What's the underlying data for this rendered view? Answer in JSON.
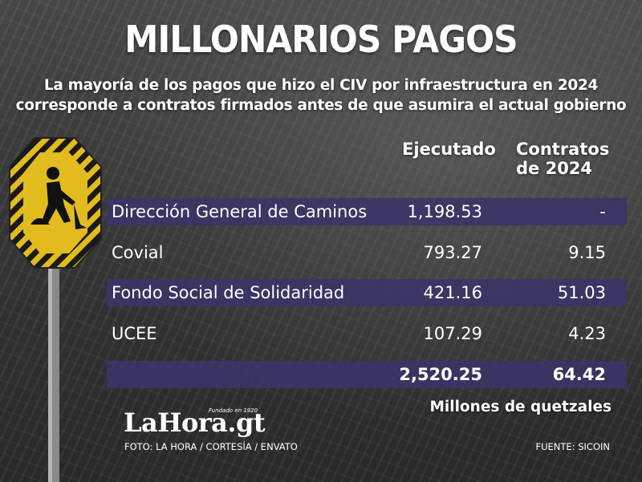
{
  "title": "MILLONARIOS PAGOS",
  "subtitle": {
    "line1": "La mayoría de los pagos que hizo el CIV por infraestructura en 2024",
    "line2": "corresponde a contratos firmados antes de que asumira el actual gobierno"
  },
  "table": {
    "headers": {
      "col1": "Ejecutado",
      "col2_line1": "Contratos",
      "col2_line2": "de 2024"
    },
    "rows": [
      {
        "name": "Dirección General de Caminos",
        "ejecutado": "1,198.53",
        "contratos": "-"
      },
      {
        "name": "Covial",
        "ejecutado": "793.27",
        "contratos": "9.15"
      },
      {
        "name": "Fondo Social de Solidaridad",
        "ejecutado": "421.16",
        "contratos": "51.03"
      },
      {
        "name": "UCEE",
        "ejecutado": "107.29",
        "contratos": "4.23"
      }
    ],
    "total": {
      "ejecutado": "2,520.25",
      "contratos": "64.42"
    },
    "unit": "Millones de quetzales"
  },
  "logo": {
    "text": "LaHora.gt",
    "tagline": "Fundado en 1920"
  },
  "credits": {
    "photo": "FOTO: LA HORA / CORTESÍA / ENVATO",
    "source": "FUENTE: SICOIN"
  },
  "colors": {
    "band": "#3a3468",
    "sign_yellow": "#e2bb1e",
    "text": "#ffffff"
  },
  "icons": {
    "sign": "construction-worker-sign-icon"
  }
}
